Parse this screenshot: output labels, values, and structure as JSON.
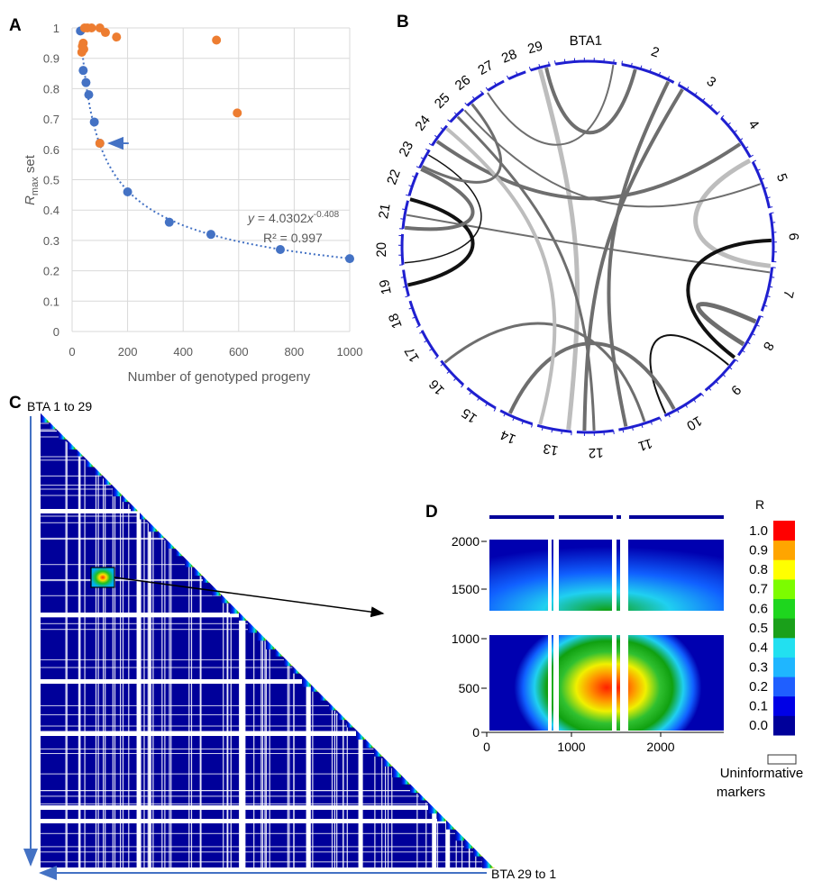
{
  "panels": {
    "a": "A",
    "b": "B",
    "c": "C",
    "d": "D"
  },
  "chart_data": [
    {
      "panel": "A",
      "type": "scatter",
      "xlabel": "Number of genotyped progeny",
      "ylabel_main": "R",
      "ylabel_sub": "max",
      "ylabel_tail": " set",
      "xlim": [
        0,
        1000
      ],
      "ylim": [
        0,
        1
      ],
      "xticks": [
        "0",
        "200",
        "400",
        "600",
        "800",
        "1000"
      ],
      "yticks": [
        "0",
        "0.1",
        "0.2",
        "0.3",
        "0.4",
        "0.5",
        "0.6",
        "0.7",
        "0.8",
        "0.9",
        "1"
      ],
      "grid": true,
      "colors": {
        "blue": "#4472C4",
        "orange": "#ED7D31",
        "arrow": "#4472C4"
      },
      "series": [
        {
          "color": "blue",
          "points": [
            [
              30,
              0.99
            ],
            [
              40,
              0.86
            ],
            [
              50,
              0.82
            ],
            [
              60,
              0.78
            ],
            [
              80,
              0.69
            ],
            [
              100,
              0.62
            ],
            [
              200,
              0.46
            ],
            [
              350,
              0.36
            ],
            [
              500,
              0.32
            ],
            [
              750,
              0.27
            ],
            [
              1000,
              0.24
            ]
          ]
        },
        {
          "color": "orange",
          "points": [
            [
              35,
              0.92
            ],
            [
              37,
              0.94
            ],
            [
              40,
              0.95
            ],
            [
              42,
              0.93
            ],
            [
              45,
              1.0
            ],
            [
              55,
              1.0
            ],
            [
              70,
              1.0
            ],
            [
              100,
              1.0
            ],
            [
              120,
              0.985
            ],
            [
              160,
              0.97
            ],
            [
              100,
              0.62
            ],
            [
              520,
              0.96
            ],
            [
              595,
              0.72
            ]
          ]
        }
      ],
      "trendline": {
        "a": 4.0302,
        "b": -0.408
      },
      "equation": {
        "y": "y",
        "body": " = 4.0302",
        "x": "x",
        "exp": "-0.408"
      },
      "r2": "R² = 0.997",
      "arrow_at": [
        100,
        0.62
      ]
    },
    {
      "panel": "B",
      "type": "chord",
      "segments": [
        "BTA1",
        "2",
        "3",
        "4",
        "5",
        "6",
        "7",
        "8",
        "9",
        "10",
        "11",
        "12",
        "13",
        "14",
        "15",
        "16",
        "17",
        "18",
        "19",
        "20",
        "21",
        "22",
        "23",
        "24",
        "25",
        "26",
        "27",
        "28",
        "29"
      ],
      "ring_color": "#1f1fd0",
      "links": [
        {
          "from": 345,
          "to": 186,
          "shade": "light",
          "w": 5
        },
        {
          "from": 26,
          "to": 168,
          "shade": "mid",
          "w": 4
        },
        {
          "from": 31,
          "to": 181,
          "shade": "mid",
          "w": 4
        },
        {
          "from": 56,
          "to": 305,
          "shade": "mid",
          "w": 4
        },
        {
          "from": 62,
          "to": 96,
          "shade": "light",
          "w": 5
        },
        {
          "from": 98,
          "to": 280,
          "shade": "mid",
          "w": 2
        },
        {
          "from": 88,
          "to": 127,
          "shade": "dark",
          "w": 4
        },
        {
          "from": 122,
          "to": 114,
          "shade": "mid",
          "w": 5
        },
        {
          "from": 130,
          "to": 155,
          "shade": "dark",
          "w": 2
        },
        {
          "from": 152,
          "to": 205,
          "shade": "mid",
          "w": 4
        },
        {
          "from": 162,
          "to": 231,
          "shade": "mid",
          "w": 3
        },
        {
          "from": 178,
          "to": 315,
          "shade": "mid",
          "w": 3
        },
        {
          "from": 195,
          "to": 310,
          "shade": "light",
          "w": 4
        },
        {
          "from": 258,
          "to": 285,
          "shade": "dark",
          "w": 4
        },
        {
          "from": 276,
          "to": 295,
          "shade": "mid",
          "w": 4
        },
        {
          "from": 300,
          "to": 265,
          "shade": "dark",
          "w": 1.5
        },
        {
          "from": 296,
          "to": 321,
          "shade": "mid",
          "w": 3
        },
        {
          "from": 327,
          "to": 8,
          "shade": "mid",
          "w": 2
        },
        {
          "from": 347,
          "to": 15,
          "shade": "mid",
          "w": 4
        },
        {
          "from": 318,
          "to": 70,
          "shade": "mid",
          "w": 2
        }
      ]
    },
    {
      "panel": "C",
      "type": "heatmap",
      "top_label": "BTA 1 to 29",
      "bottom_label": "BTA 29 to 1",
      "fill": "#00009A",
      "arrow_color": "#4472C4"
    },
    {
      "panel": "D",
      "type": "heatmap",
      "xlim": [
        0,
        2700
      ],
      "xticks": [
        "0",
        "1000",
        "2000"
      ],
      "yticks": [
        "0",
        "500",
        "1000",
        "1500",
        "2000"
      ],
      "colorbar_title": "R",
      "colorbar_ticks": [
        "0.0",
        "0.1",
        "0.2",
        "0.3",
        "0.4",
        "0.5",
        "0.6",
        "0.7",
        "0.8",
        "0.9",
        "1.0"
      ],
      "colorbar_colors": [
        "#00009A",
        "#0000E6",
        "#1F5FFF",
        "#1FB6FF",
        "#22E0F0",
        "#1AA01A",
        "#1ED61E",
        "#7CFC00",
        "#FFFF00",
        "#FFA500",
        "#FF0000"
      ],
      "legend_label_1": "Uninformative",
      "legend_label_2": "markers"
    }
  ]
}
